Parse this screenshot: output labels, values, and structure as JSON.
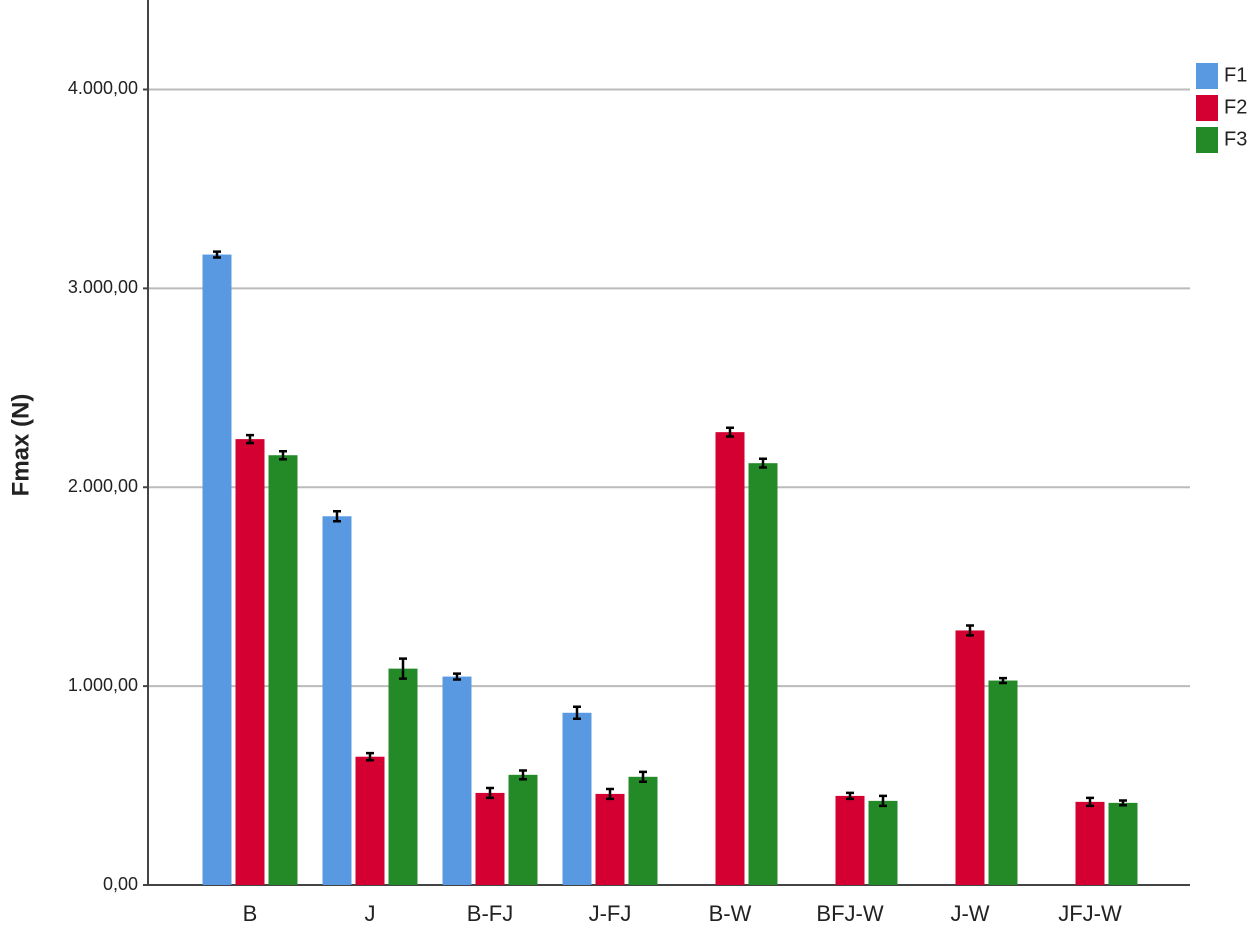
{
  "chart_data": {
    "type": "bar",
    "y_label": "Fmax (N)",
    "categories": [
      "B",
      "J",
      "B-FJ",
      "J-FJ",
      "B-W",
      "BFJ-W",
      "J-W",
      "JFJ-W"
    ],
    "series": [
      {
        "name": "F1",
        "color": "#5899e2",
        "values": [
          3170,
          1854,
          1048,
          866,
          null,
          null,
          null,
          null
        ],
        "errors": [
          15,
          25,
          15,
          30,
          null,
          null,
          null,
          null
        ]
      },
      {
        "name": "F2",
        "color": "#d40032",
        "values": [
          2242,
          645,
          463,
          458,
          2277,
          448,
          1280,
          418
        ],
        "errors": [
          20,
          18,
          25,
          25,
          22,
          15,
          25,
          20
        ]
      },
      {
        "name": "F3",
        "color": "#248a28",
        "values": [
          2161,
          1088,
          554,
          544,
          2121,
          423,
          1028,
          413
        ],
        "errors": [
          20,
          50,
          22,
          25,
          22,
          25,
          12,
          12
        ]
      }
    ],
    "ylim": [
      0,
      4450
    ],
    "yticks": [
      {
        "value": 0,
        "label": "0,00"
      },
      {
        "value": 1000,
        "label": "1.000,00"
      },
      {
        "value": 2000,
        "label": "2.000,00"
      },
      {
        "value": 3000,
        "label": "3.000,00"
      },
      {
        "value": 4000,
        "label": "4.000,00"
      }
    ],
    "grid": true,
    "legend": "top-right"
  }
}
